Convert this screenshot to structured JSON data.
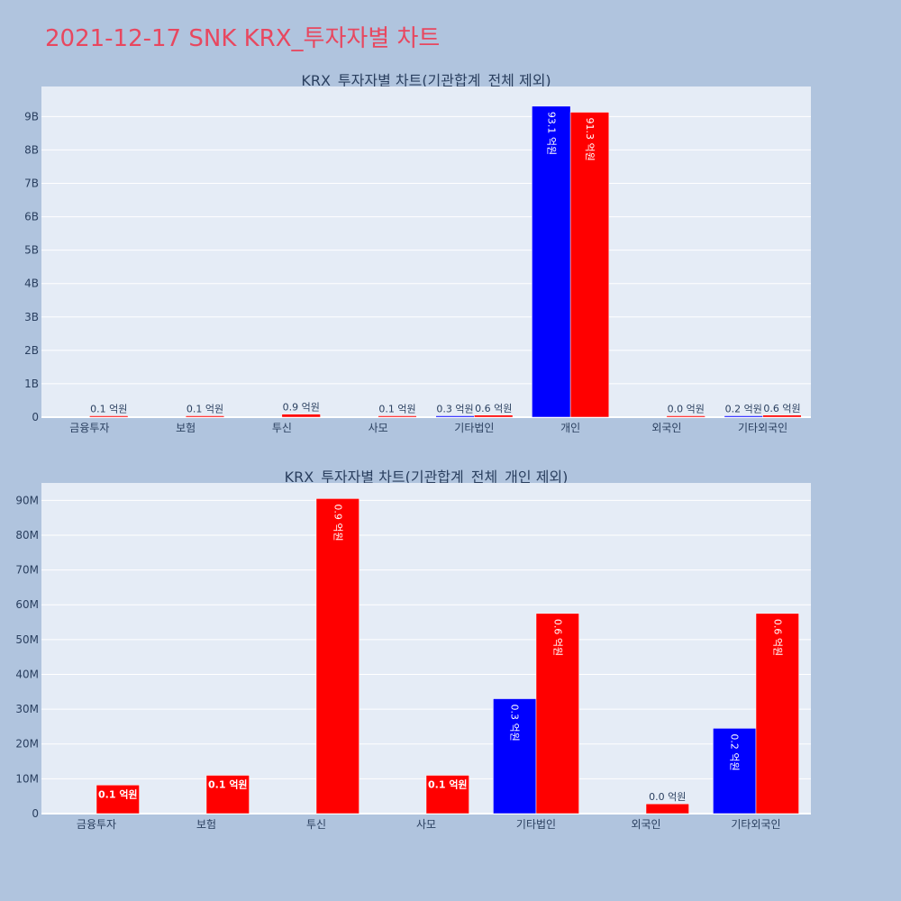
{
  "page_title": "2021-12-17 SNK KRX_투자자별 차트",
  "colors": {
    "series_a": "#0000ff",
    "series_b": "#ff0000",
    "plot_bg": "#e5ecf6",
    "page_bg": "#b0c4de",
    "title": "#e8475f"
  },
  "chart_data": [
    {
      "type": "bar",
      "title": "KRX_투자자별 차트(기관합계_전체 제외)",
      "categories": [
        "금융투자",
        "보험",
        "투신",
        "사모",
        "기타법인",
        "개인",
        "외국인",
        "기타외국인"
      ],
      "ytick_labels": [
        "0",
        "1B",
        "2B",
        "3B",
        "4B",
        "5B",
        "6B",
        "7B",
        "8B",
        "9B"
      ],
      "ylim": [
        0,
        9900000000
      ],
      "series": [
        {
          "color": "#0000ff",
          "values": [
            null,
            null,
            null,
            null,
            30000000,
            9310000000,
            null,
            20000000
          ],
          "labels": [
            "",
            "",
            "",
            "",
            "0.3 억원",
            "93.1 억원",
            "",
            "0.2 억원"
          ]
        },
        {
          "color": "#ff0000",
          "values": [
            10000000,
            10000000,
            90000000,
            10000000,
            60000000,
            9130000000,
            0,
            60000000
          ],
          "labels": [
            "0.1 억원",
            "0.1 억원",
            "0.9 억원",
            "0.1 억원",
            "0.6 억원",
            "91.3 억원",
            "0.0 억원",
            "0.6 억원"
          ]
        }
      ]
    },
    {
      "type": "bar",
      "title": "KRX_투자자별 차트(기관합계_전체_개인 제외)",
      "categories": [
        "금융투자",
        "보험",
        "투신",
        "사모",
        "기타법인",
        "외국인",
        "기타외국인"
      ],
      "ytick_labels": [
        "0",
        "10M",
        "20M",
        "30M",
        "40M",
        "50M",
        "60M",
        "70M",
        "80M",
        "90M"
      ],
      "ylim": [
        0,
        95000000
      ],
      "series": [
        {
          "color": "#0000ff",
          "values": [
            null,
            null,
            null,
            null,
            33000000,
            null,
            24500000
          ],
          "labels": [
            "",
            "",
            "",
            "",
            "0.3 억원",
            "",
            "0.2 억원"
          ]
        },
        {
          "color": "#ff0000",
          "values": [
            8200000,
            11000000,
            90500000,
            11000000,
            57500000,
            2800000,
            57500000
          ],
          "labels": [
            "0.1 억원",
            "0.1 억원",
            "0.9 억원",
            "0.1 억원",
            "0.6 억원",
            "0.0 억원",
            "0.6 억원"
          ]
        }
      ]
    }
  ]
}
